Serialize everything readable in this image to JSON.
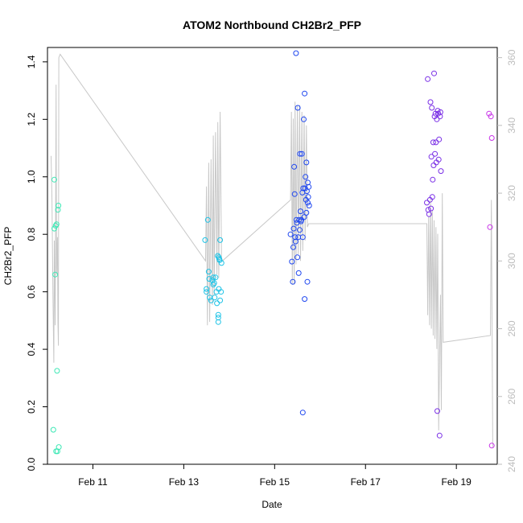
{
  "chart_data": {
    "type": "scatter",
    "title": "ATOM2 Northbound CH2Br2_PFP",
    "xlabel": "Date",
    "ylabel": "CH2Br2_PFP",
    "xlim": [
      10.0,
      19.9
    ],
    "ylim": [
      0.0,
      1.45
    ],
    "y2lim": [
      240,
      363
    ],
    "x_ticks": [
      {
        "value": 11,
        "label": "Feb 11"
      },
      {
        "value": 13,
        "label": "Feb 13"
      },
      {
        "value": 15,
        "label": "Feb 15"
      },
      {
        "value": 17,
        "label": "Feb 17"
      },
      {
        "value": 19,
        "label": "Feb 19"
      }
    ],
    "y_ticks": [
      0.0,
      0.2,
      0.4,
      0.6,
      0.8,
      1.0,
      1.2,
      1.4
    ],
    "y_tick_labels": [
      "0.0",
      "0.2",
      "0.4",
      "0.6",
      "0.8",
      "1.0",
      "1.2",
      "1.4"
    ],
    "y2_ticks": [
      240,
      260,
      280,
      300,
      320,
      340,
      360
    ],
    "y2_tick_labels": [
      "240",
      "260",
      "280",
      "300",
      "320",
      "340",
      "360"
    ],
    "grid": false,
    "legend": "none",
    "colors": {
      "secondary_line": "#c8c8c8",
      "right_axis": "#bdbdbd"
    },
    "series": [
      {
        "color": "#3de8b5",
        "points": [
          [
            10.13,
            0.12
          ],
          [
            10.15,
            0.99
          ],
          [
            10.15,
            0.82
          ],
          [
            10.17,
            0.66
          ],
          [
            10.18,
            0.83
          ],
          [
            10.19,
            0.045
          ],
          [
            10.2,
            0.835
          ],
          [
            10.21,
            0.325
          ],
          [
            10.22,
            0.045
          ],
          [
            10.23,
            0.885
          ],
          [
            10.24,
            0.9
          ],
          [
            10.25,
            0.06
          ]
        ]
      },
      {
        "color": "#1ec3e6",
        "points": [
          [
            13.47,
            0.78
          ],
          [
            13.5,
            0.61
          ],
          [
            13.5,
            0.6
          ],
          [
            13.53,
            0.85
          ],
          [
            13.55,
            0.67
          ],
          [
            13.56,
            0.645
          ],
          [
            13.57,
            0.58
          ],
          [
            13.6,
            0.57
          ],
          [
            13.63,
            0.64
          ],
          [
            13.65,
            0.65
          ],
          [
            13.65,
            0.625
          ],
          [
            13.67,
            0.63
          ],
          [
            13.68,
            0.58
          ],
          [
            13.7,
            0.65
          ],
          [
            13.72,
            0.6
          ],
          [
            13.73,
            0.56
          ],
          [
            13.75,
            0.725
          ],
          [
            13.76,
            0.52
          ],
          [
            13.76,
            0.51
          ],
          [
            13.76,
            0.495
          ],
          [
            13.77,
            0.72
          ],
          [
            13.77,
            0.61
          ],
          [
            13.78,
            0.715
          ],
          [
            13.79,
            0.71
          ],
          [
            13.8,
            0.78
          ],
          [
            13.8,
            0.57
          ],
          [
            13.82,
            0.6
          ],
          [
            13.83,
            0.7
          ]
        ]
      },
      {
        "color": "#1f47f0",
        "points": [
          [
            15.35,
            0.8
          ],
          [
            15.38,
            0.705
          ],
          [
            15.4,
            0.635
          ],
          [
            15.41,
            0.755
          ],
          [
            15.42,
            0.82
          ],
          [
            15.43,
            1.035
          ],
          [
            15.44,
            0.94
          ],
          [
            15.45,
            0.79
          ],
          [
            15.46,
            0.775
          ],
          [
            15.47,
            1.43
          ],
          [
            15.48,
            0.85
          ],
          [
            15.49,
            0.84
          ],
          [
            15.5,
            0.72
          ],
          [
            15.51,
            1.24
          ],
          [
            15.52,
            0.79
          ],
          [
            15.53,
            0.665
          ],
          [
            15.54,
            0.85
          ],
          [
            15.55,
            0.815
          ],
          [
            15.56,
            1.08
          ],
          [
            15.57,
            0.88
          ],
          [
            15.58,
            0.845
          ],
          [
            15.59,
            0.85
          ],
          [
            15.6,
            1.08
          ],
          [
            15.61,
            0.945
          ],
          [
            15.62,
            0.79
          ],
          [
            15.62,
            0.18
          ],
          [
            15.63,
            0.96
          ],
          [
            15.64,
            1.2
          ],
          [
            15.65,
            0.86
          ],
          [
            15.66,
            0.575
          ],
          [
            15.67,
            0.96
          ],
          [
            15.68,
            1.0
          ],
          [
            15.69,
            0.92
          ],
          [
            15.7,
            0.875
          ],
          [
            15.71,
            0.95
          ],
          [
            15.72,
            0.635
          ],
          [
            15.73,
            0.91
          ],
          [
            15.74,
            0.93
          ],
          [
            15.75,
            0.965
          ],
          [
            15.76,
            0.9
          ],
          [
            15.66,
            1.29
          ],
          [
            15.7,
            1.05
          ],
          [
            15.73,
            0.98
          ]
        ]
      },
      {
        "color": "#7a2fe6",
        "points": [
          [
            18.35,
            0.91
          ],
          [
            18.37,
            1.34
          ],
          [
            18.38,
            0.885
          ],
          [
            18.4,
            0.87
          ],
          [
            18.42,
            0.92
          ],
          [
            18.43,
            1.26
          ],
          [
            18.44,
            0.89
          ],
          [
            18.45,
            1.07
          ],
          [
            18.46,
            1.24
          ],
          [
            18.47,
            0.93
          ],
          [
            18.48,
            0.99
          ],
          [
            18.49,
            1.12
          ],
          [
            18.5,
            1.04
          ],
          [
            18.51,
            1.36
          ],
          [
            18.52,
            1.21
          ],
          [
            18.53,
            1.08
          ],
          [
            18.54,
            1.22
          ],
          [
            18.55,
            1.12
          ],
          [
            18.56,
            1.05
          ],
          [
            18.57,
            1.2
          ],
          [
            18.58,
            0.185
          ],
          [
            18.59,
            1.23
          ],
          [
            18.6,
            1.22
          ],
          [
            18.61,
            1.06
          ],
          [
            18.62,
            1.13
          ],
          [
            18.63,
            0.1
          ],
          [
            18.64,
            1.21
          ],
          [
            18.65,
            1.225
          ],
          [
            18.66,
            1.02
          ]
        ]
      },
      {
        "color": "#c832e8",
        "points": [
          [
            19.72,
            1.22
          ],
          [
            19.74,
            0.825
          ],
          [
            19.76,
            1.21
          ],
          [
            19.78,
            1.135
          ],
          [
            19.78,
            0.065
          ]
        ]
      }
    ],
    "secondary_line": {
      "axis": "right",
      "points": [
        [
          10.08,
          331
        ],
        [
          10.1,
          318
        ],
        [
          10.12,
          290
        ],
        [
          10.14,
          270
        ],
        [
          10.15,
          306
        ],
        [
          10.17,
          281
        ],
        [
          10.19,
          352
        ],
        [
          10.2,
          296
        ],
        [
          10.22,
          307
        ],
        [
          10.23,
          282
        ],
        [
          10.24,
          275
        ],
        [
          10.25,
          360
        ],
        [
          10.28,
          361
        ],
        [
          13.48,
          300
        ],
        [
          13.5,
          322
        ],
        [
          13.52,
          281
        ],
        [
          13.55,
          329
        ],
        [
          13.57,
          282
        ],
        [
          13.6,
          330
        ],
        [
          13.63,
          287
        ],
        [
          13.65,
          337
        ],
        [
          13.67,
          290
        ],
        [
          13.7,
          338
        ],
        [
          13.73,
          296
        ],
        [
          13.75,
          341
        ],
        [
          13.77,
          295
        ],
        [
          13.8,
          344
        ],
        [
          13.83,
          301
        ],
        [
          13.85,
          300
        ],
        [
          15.35,
          318
        ],
        [
          15.37,
          344
        ],
        [
          15.39,
          293
        ],
        [
          15.41,
          342
        ],
        [
          15.43,
          293
        ],
        [
          15.45,
          347
        ],
        [
          15.47,
          299
        ],
        [
          15.5,
          346
        ],
        [
          15.52,
          302
        ],
        [
          15.55,
          346
        ],
        [
          15.57,
          300
        ],
        [
          15.6,
          344
        ],
        [
          15.62,
          303
        ],
        [
          15.65,
          343
        ],
        [
          15.67,
          306
        ],
        [
          15.7,
          340
        ],
        [
          15.72,
          310
        ],
        [
          15.75,
          311
        ],
        [
          18.35,
          311
        ],
        [
          18.37,
          284
        ],
        [
          18.39,
          313
        ],
        [
          18.41,
          281
        ],
        [
          18.43,
          318
        ],
        [
          18.45,
          280
        ],
        [
          18.47,
          315
        ],
        [
          18.49,
          278
        ],
        [
          18.51,
          312
        ],
        [
          18.53,
          277
        ],
        [
          18.55,
          310
        ],
        [
          18.57,
          274
        ],
        [
          18.59,
          308
        ],
        [
          18.61,
          250
        ],
        [
          18.63,
          271
        ],
        [
          18.65,
          290
        ],
        [
          18.67,
          256
        ],
        [
          18.69,
          320
        ],
        [
          18.71,
          276
        ],
        [
          19.75,
          278
        ],
        [
          19.77,
          318
        ],
        [
          19.8,
          245
        ]
      ]
    }
  }
}
